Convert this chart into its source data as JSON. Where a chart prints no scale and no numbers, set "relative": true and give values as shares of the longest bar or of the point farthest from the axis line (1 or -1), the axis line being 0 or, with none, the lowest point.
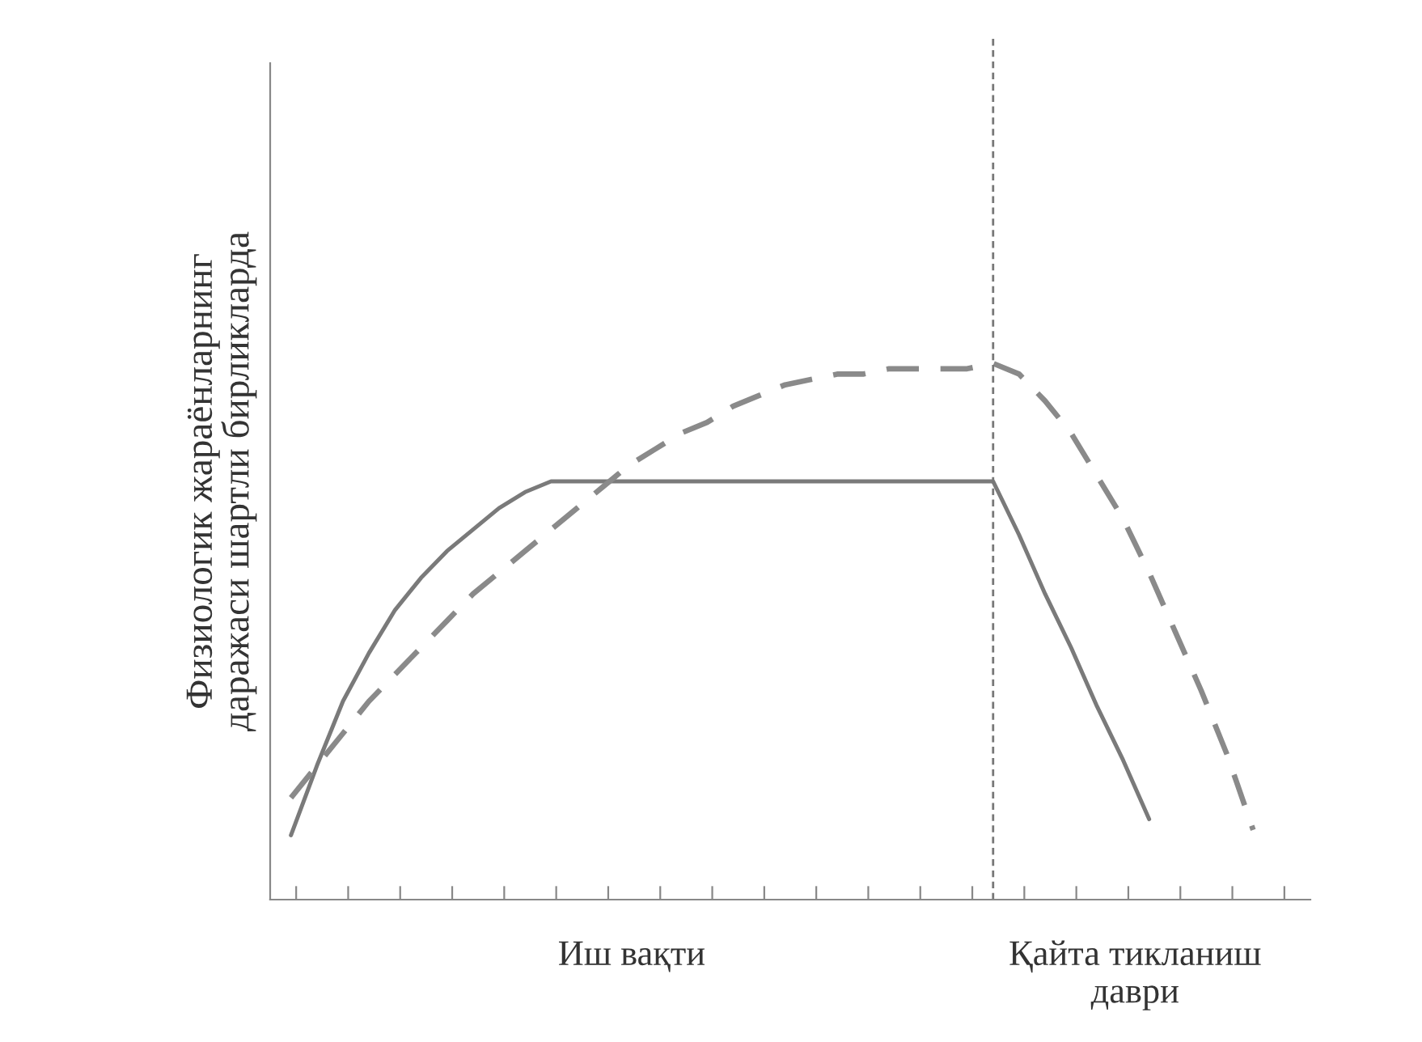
{
  "chart_data": {
    "type": "line",
    "relative": true,
    "ylabel": "Физиологик жараёнларнинг\nдаражаси шартли бирликларда",
    "categories": [
      null,
      null,
      null,
      null,
      null,
      null,
      null,
      null,
      null,
      null,
      null,
      null,
      null,
      null,
      null,
      null,
      null,
      null,
      null,
      null,
      null,
      null,
      null,
      null,
      null,
      null,
      null,
      null,
      null,
      null,
      null,
      null,
      null,
      null,
      null,
      null,
      null,
      null
    ],
    "series": [
      {
        "color": "#7a7a7a",
        "line_style": "solid",
        "values": [
          0.12,
          0.25,
          0.37,
          0.46,
          0.54,
          0.6,
          0.65,
          0.69,
          0.73,
          0.76,
          0.78,
          0.78,
          0.78,
          0.78,
          0.78,
          0.78,
          0.78,
          0.78,
          0.78,
          0.78,
          0.78,
          0.78,
          0.78,
          0.78,
          0.78,
          0.78,
          0.78,
          0.78,
          0.68,
          0.57,
          0.47,
          0.36,
          0.26,
          0.15,
          null,
          null,
          null,
          null
        ]
      },
      {
        "color": "#8a8a8a",
        "line_style": "dashed",
        "values": [
          0.19,
          0.25,
          0.31,
          0.37,
          0.42,
          0.47,
          0.52,
          0.57,
          0.61,
          0.65,
          0.69,
          0.73,
          0.77,
          0.81,
          0.84,
          0.87,
          0.89,
          0.92,
          0.94,
          0.96,
          0.97,
          0.98,
          0.98,
          0.99,
          0.99,
          0.99,
          0.99,
          1.0,
          0.98,
          0.93,
          0.87,
          0.79,
          0.71,
          0.61,
          0.5,
          0.39,
          0.27,
          0.13
        ]
      }
    ],
    "ref_lines": [
      {
        "axis": "x",
        "color": "#777777",
        "line_style": "dashed"
      }
    ],
    "annotations": [
      "Иш вақти",
      "Қайта тикланиш\nдаври"
    ],
    "grid": false,
    "legend": false
  }
}
